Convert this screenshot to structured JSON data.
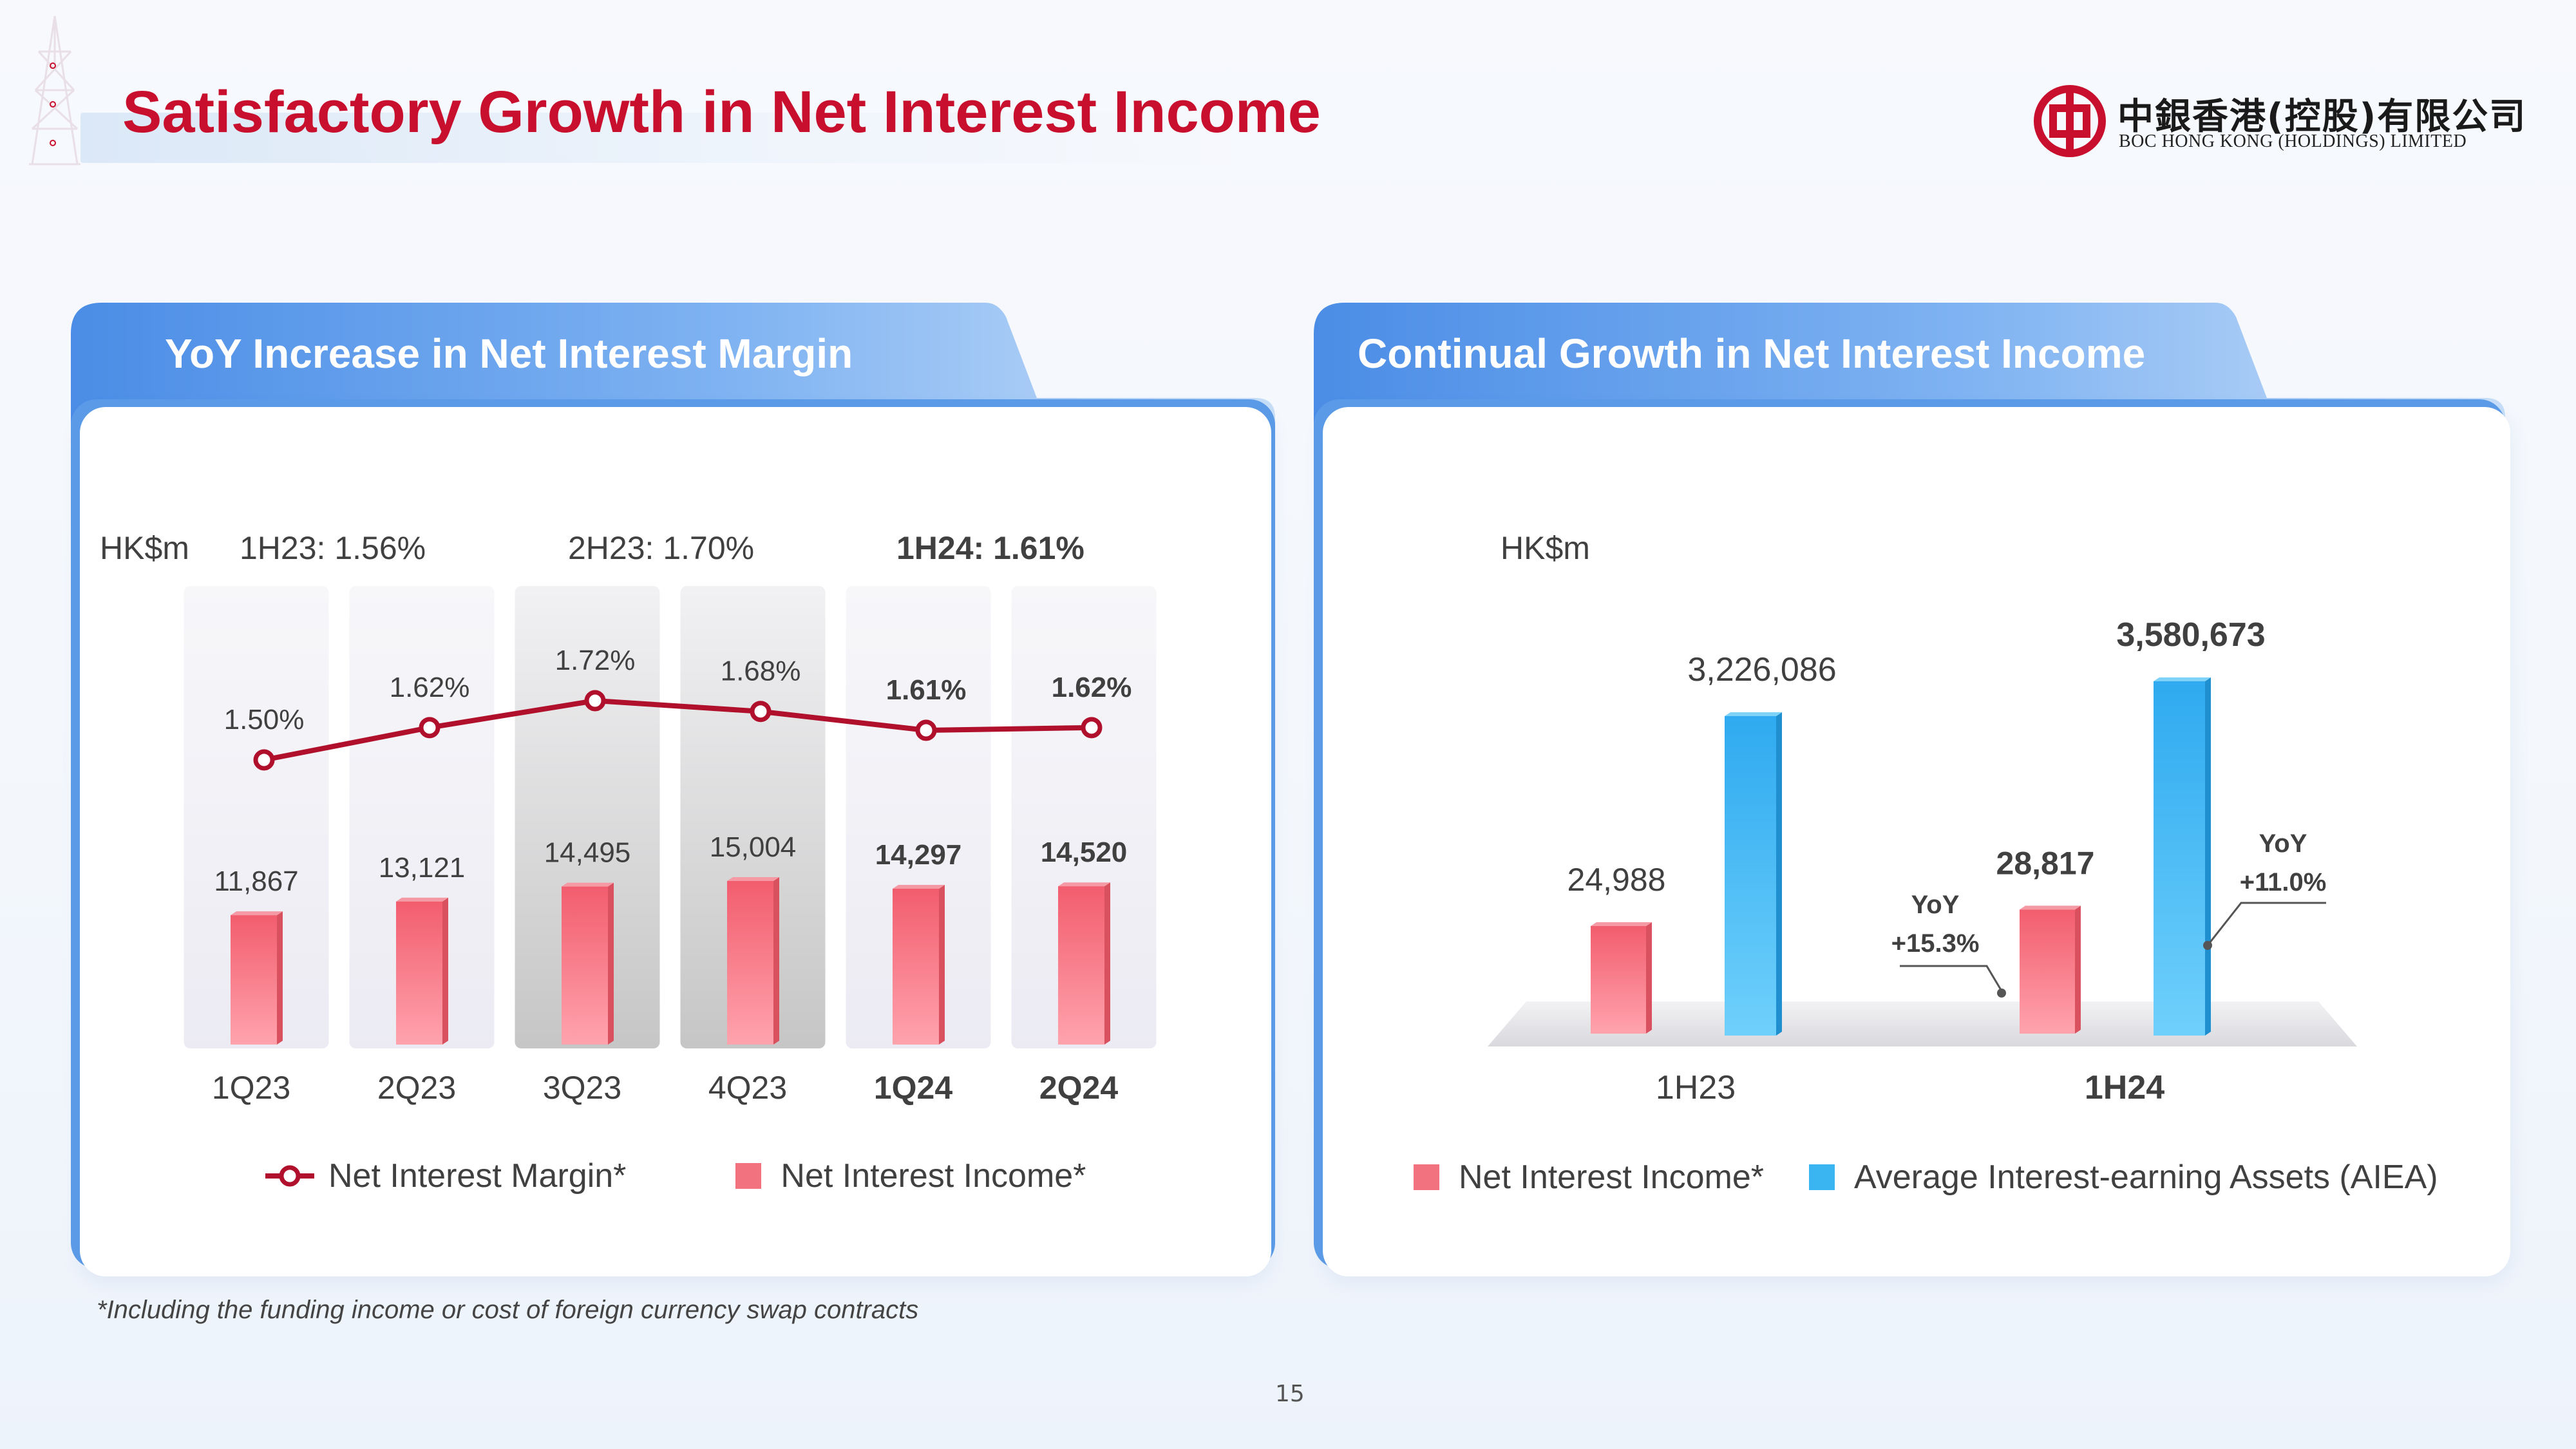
{
  "header": {
    "title": "Satisfactory Growth in Net Interest Income",
    "logo_cn": "中銀香港(控股)有限公司",
    "logo_en": "BOC HONG KONG (HOLDINGS) LIMITED"
  },
  "left_panel": {
    "title": "YoY Increase in Net Interest Margin",
    "unit": "HK$m",
    "period_margins": [
      "1H23: 1.56%",
      "2H23: 1.70%",
      "1H24: 1.61%"
    ]
  },
  "right_panel": {
    "title": "Continual Growth in Net Interest Income",
    "unit": "HK$m",
    "yoy_nii": [
      "YoY",
      "+15.3%"
    ],
    "yoy_aiea": [
      "YoY",
      "+11.0%"
    ]
  },
  "footnote": "*Including the funding income or cost of foreign currency swap contracts",
  "page_number": "15",
  "colors": {
    "title_red": "#c8102e",
    "margin_line": "#b0102b",
    "bar_pink": "#f2727f",
    "bar_blue": "#2bb3f0",
    "panel_header_blue": "#5b9be8"
  },
  "chart_data": [
    {
      "type": "bar",
      "categories": [
        "1Q23",
        "2Q23",
        "3Q23",
        "4Q23",
        "1Q24",
        "2Q24"
      ],
      "highlighted_categories": [
        "1Q24",
        "2Q24"
      ],
      "series": [
        {
          "name": "Net Interest Income*",
          "kind": "bar",
          "values": [
            11867,
            13121,
            14495,
            15004,
            14297,
            14520
          ],
          "labels": [
            "11,867",
            "13,121",
            "14,495",
            "15,004",
            "14,297",
            "14,520"
          ]
        },
        {
          "name": "Net Interest Margin*",
          "kind": "line",
          "values": [
            1.5,
            1.62,
            1.72,
            1.68,
            1.61,
            1.62
          ],
          "labels": [
            "1.50%",
            "1.62%",
            "1.72%",
            "1.68%",
            "1.61%",
            "1.62%"
          ]
        }
      ],
      "legend": [
        "Net Interest Margin*",
        "Net Interest Income*"
      ],
      "legend_position": "bottom"
    },
    {
      "type": "bar",
      "categories": [
        "1H23",
        "1H24"
      ],
      "highlighted_categories": [
        "1H24"
      ],
      "series": [
        {
          "name": "Net Interest Income*",
          "values": [
            24988,
            28817
          ],
          "labels": [
            "24,988",
            "28,817"
          ]
        },
        {
          "name": "Average Interest-earning Assets (AIEA)",
          "values": [
            3226086,
            3580673
          ],
          "labels": [
            "3,226,086",
            "3,580,673"
          ]
        }
      ],
      "legend_position": "bottom"
    }
  ]
}
